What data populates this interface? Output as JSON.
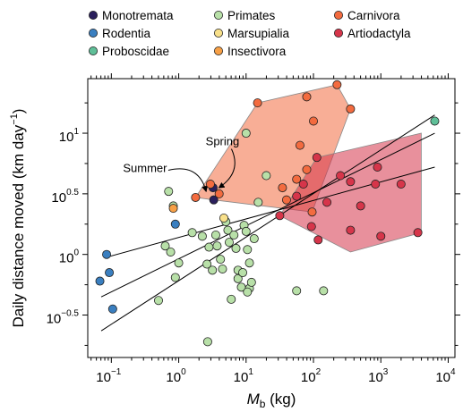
{
  "chart_data": {
    "type": "scatter",
    "title": "",
    "xlabel": {
      "main": "M",
      "sub": "b",
      "unit": " (kg)"
    },
    "ylabel": {
      "main": "Daily distance moved (km day",
      "sup": "−1",
      "tail": ")"
    },
    "x_scale": "log10",
    "xlim": [
      -1.35,
      4.1
    ],
    "ylim": [
      -0.85,
      1.45
    ],
    "x_ticks": [
      {
        "base": "10",
        "exp": "−1"
      },
      {
        "base": "10",
        "exp": "0"
      },
      {
        "base": "10",
        "exp": "1"
      },
      {
        "base": "10",
        "exp": "2"
      },
      {
        "base": "10",
        "exp": "3"
      },
      {
        "base": "10",
        "exp": "4"
      }
    ],
    "y_ticks": [
      {
        "base": "10",
        "exp": "−0.5"
      },
      {
        "base": "10",
        "exp": "0"
      },
      {
        "base": "10",
        "exp": "0.5"
      },
      {
        "base": "10",
        "exp": "1"
      }
    ],
    "grid": false,
    "legend_position": "top",
    "legend": [
      {
        "name": "Monotremata",
        "color": "#2a1f5c"
      },
      {
        "name": "Primates",
        "color": "#b8e0a8"
      },
      {
        "name": "Carnivora",
        "color": "#f36b3f"
      },
      {
        "name": "Rodentia",
        "color": "#3a7fc0"
      },
      {
        "name": "Marsupialia",
        "color": "#f8e08a"
      },
      {
        "name": "Artiodactyla",
        "color": "#d6354a"
      },
      {
        "name": "Proboscidae",
        "color": "#5fbf98"
      },
      {
        "name": "Insectivora",
        "color": "#f7a046"
      }
    ],
    "series": [
      {
        "name": "Monotremata",
        "color": "#2a1f5c",
        "points": [
          [
            0.51,
            0.55
          ],
          [
            0.52,
            0.45
          ]
        ]
      },
      {
        "name": "Rodentia",
        "color": "#3a7fc0",
        "points": [
          [
            -1.17,
            -0.22
          ],
          [
            -1.07,
            0.0
          ],
          [
            -1.03,
            -0.15
          ],
          [
            -0.98,
            -0.45
          ],
          [
            -0.05,
            0.25
          ]
        ]
      },
      {
        "name": "Proboscidae",
        "color": "#5fbf98",
        "points": [
          [
            3.8,
            1.1
          ]
        ]
      },
      {
        "name": "Primates",
        "color": "#b8e0a8",
        "points": [
          [
            -0.15,
            0.52
          ],
          [
            -0.08,
            0.4
          ],
          [
            -0.2,
            0.07
          ],
          [
            -0.12,
            0.02
          ],
          [
            0.0,
            -0.07
          ],
          [
            -0.05,
            -0.19
          ],
          [
            -0.3,
            -0.38
          ],
          [
            0.2,
            0.18
          ],
          [
            0.35,
            0.15
          ],
          [
            0.45,
            0.06
          ],
          [
            0.55,
            0.16
          ],
          [
            0.42,
            -0.08
          ],
          [
            0.5,
            -0.13
          ],
          [
            0.7,
            0.27
          ],
          [
            0.73,
            0.2
          ],
          [
            0.75,
            0.1
          ],
          [
            0.62,
            -0.04
          ],
          [
            0.65,
            -0.12
          ],
          [
            0.82,
            0.16
          ],
          [
            0.85,
            0.05
          ],
          [
            0.88,
            -0.13
          ],
          [
            0.88,
            -0.2
          ],
          [
            0.93,
            -0.27
          ],
          [
            0.78,
            -0.37
          ],
          [
            0.57,
            0.07
          ],
          [
            0.97,
            0.24
          ],
          [
            1.0,
            0.19
          ],
          [
            1.02,
            0.04
          ],
          [
            1.05,
            -0.07
          ],
          [
            1.05,
            -0.28
          ],
          [
            1.08,
            -0.23
          ],
          [
            1.02,
            -0.31
          ],
          [
            0.95,
            -0.15
          ],
          [
            1.12,
            0.13
          ],
          [
            1.18,
            0.43
          ],
          [
            1.3,
            0.65
          ],
          [
            1.0,
            1.0
          ],
          [
            1.75,
            -0.3
          ],
          [
            2.15,
            -0.3
          ],
          [
            0.43,
            -0.72
          ]
        ]
      },
      {
        "name": "Marsupialia",
        "color": "#f8e08a",
        "points": [
          [
            0.67,
            0.3
          ]
        ]
      },
      {
        "name": "Insectivora",
        "color": "#f7a046",
        "points": [
          [
            -0.08,
            0.38
          ]
        ]
      },
      {
        "name": "Carnivora",
        "color": "#f36b3f",
        "points": [
          [
            0.25,
            0.47
          ],
          [
            0.47,
            0.58
          ],
          [
            0.6,
            0.5
          ],
          [
            1.17,
            1.25
          ],
          [
            1.54,
            0.55
          ],
          [
            1.6,
            0.45
          ],
          [
            1.8,
            0.9
          ],
          [
            1.9,
            0.7
          ],
          [
            2.0,
            1.1
          ],
          [
            1.9,
            1.3
          ],
          [
            2.35,
            1.4
          ],
          [
            2.55,
            1.2
          ],
          [
            1.75,
            0.62
          ],
          [
            1.98,
            0.35
          ]
        ]
      },
      {
        "name": "Artiodactyla",
        "color": "#d6354a",
        "points": [
          [
            1.5,
            0.32
          ],
          [
            1.75,
            0.48
          ],
          [
            1.85,
            0.58
          ],
          [
            1.97,
            0.23
          ],
          [
            2.07,
            0.12
          ],
          [
            2.55,
            0.2
          ],
          [
            2.05,
            0.8
          ],
          [
            2.4,
            0.65
          ],
          [
            2.7,
            0.4
          ],
          [
            2.55,
            0.6
          ],
          [
            2.92,
            0.58
          ],
          [
            2.95,
            0.72
          ],
          [
            3.0,
            0.15
          ],
          [
            3.55,
            0.18
          ],
          [
            3.3,
            0.58
          ],
          [
            2.2,
            0.43
          ]
        ]
      }
    ],
    "hulls": [
      {
        "group": "Carnivora",
        "color": "#f36b3f",
        "points": [
          [
            0.25,
            0.47
          ],
          [
            1.17,
            1.25
          ],
          [
            2.35,
            1.4
          ],
          [
            2.55,
            1.2
          ],
          [
            1.98,
            0.35
          ],
          [
            0.52,
            0.45
          ]
        ]
      },
      {
        "group": "Artiodactyla",
        "color": "#d6354a",
        "points": [
          [
            1.5,
            0.32
          ],
          [
            2.05,
            0.8
          ],
          [
            3.6,
            1.0
          ],
          [
            3.6,
            0.18
          ],
          [
            2.55,
            0.02
          ],
          [
            1.5,
            0.32
          ]
        ]
      }
    ],
    "fit_lines": [
      {
        "x": [
          -1.05,
          3.8
        ],
        "y": [
          -0.02,
          0.72
        ]
      },
      {
        "x": [
          -1.15,
          3.8
        ],
        "y": [
          -0.35,
          1.0
        ]
      },
      {
        "x": [
          -1.15,
          3.8
        ],
        "y": [
          -0.63,
          1.15
        ]
      }
    ],
    "annotations": [
      {
        "text": "Spring",
        "x": 0.65,
        "y": 0.9,
        "arrow_to": [
          0.53,
          0.55
        ]
      },
      {
        "text": "Summer",
        "x": -0.5,
        "y": 0.68,
        "arrow_to": [
          0.46,
          0.52
        ]
      }
    ]
  }
}
